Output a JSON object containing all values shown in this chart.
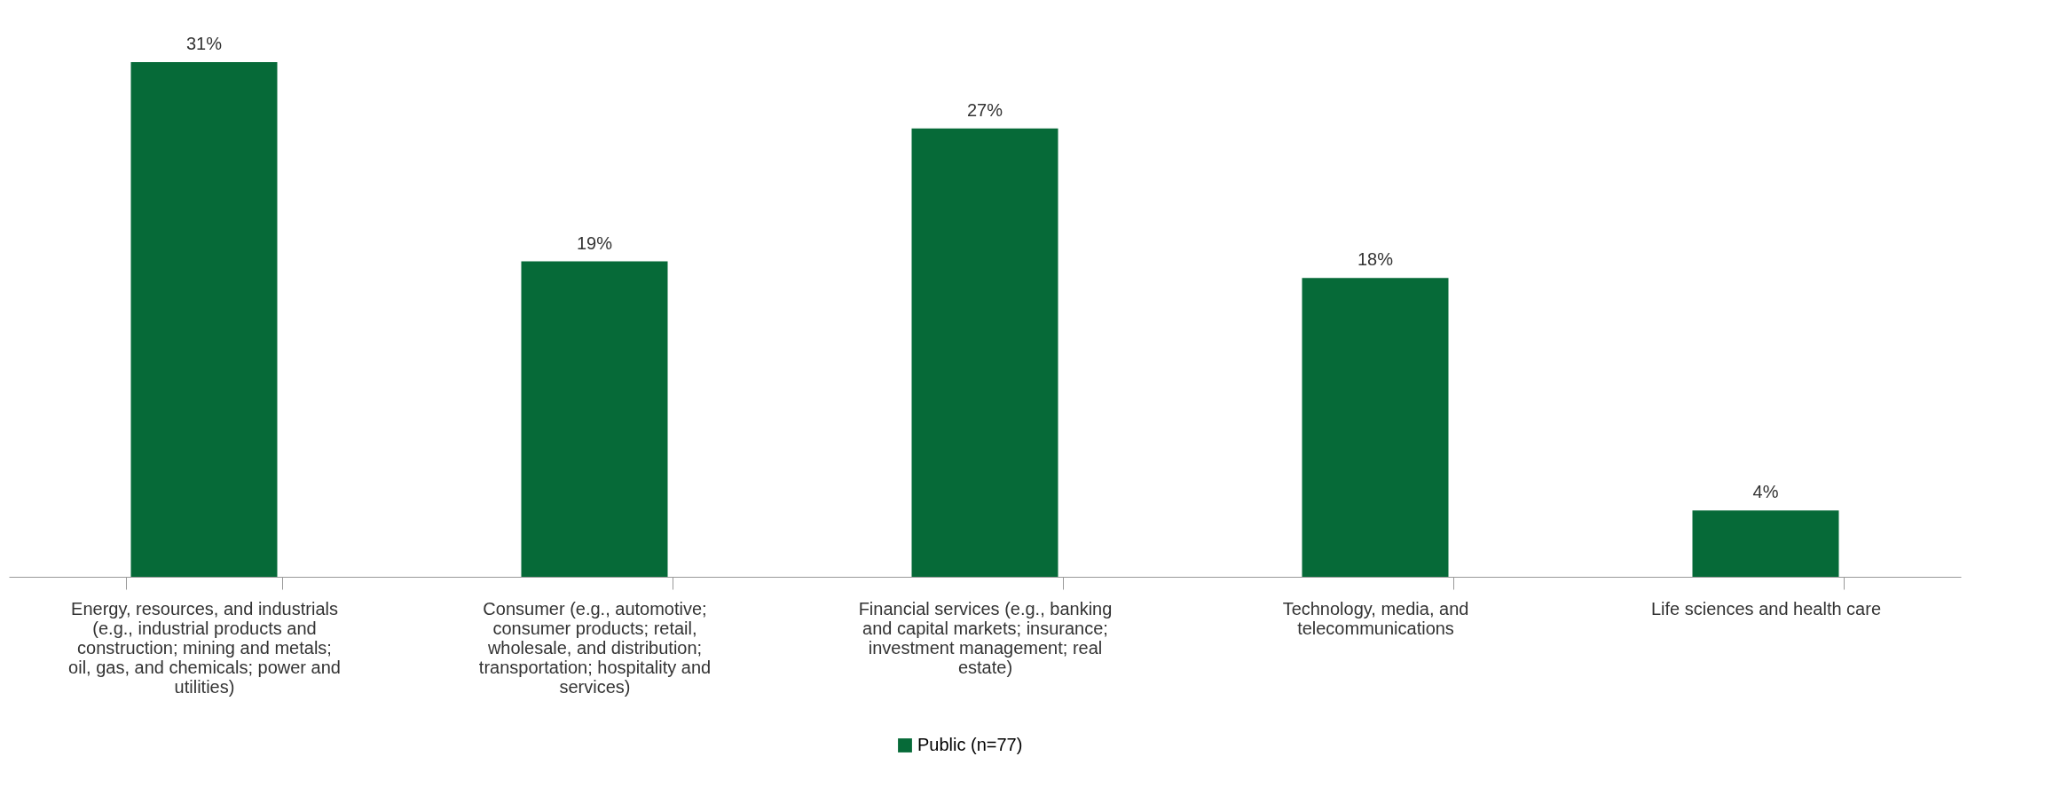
{
  "chart_data": {
    "type": "bar",
    "categories": [
      "Energy, resources, and industrials (e.g., industrial products and construction; mining and metals; oil, gas, and chemicals; power and utilities)",
      "Consumer (e.g., automotive; consumer products; retail, wholesale, and distribution; transportation; hospitality and services)",
      "Financial services (e.g., banking and capital markets; insurance; investment management; real estate)",
      "Technology, media, and telecommunications",
      "Life sciences and health care"
    ],
    "series": [
      {
        "name": "Public (n=77)",
        "color": "#066a38",
        "values": [
          31,
          19,
          27,
          18,
          4
        ],
        "value_labels": [
          "31%",
          "19%",
          "27%",
          "18%",
          "4%"
        ]
      }
    ],
    "legend": "bottom",
    "grid": false
  }
}
